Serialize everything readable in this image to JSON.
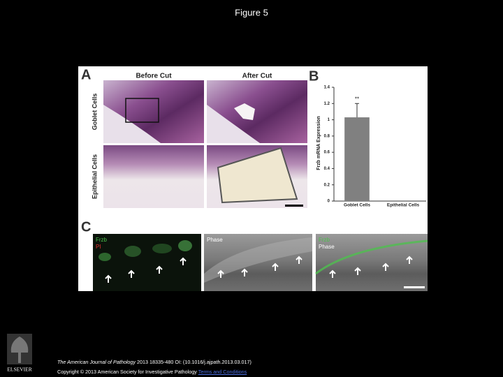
{
  "title": "Figure 5",
  "figure": {
    "panel_a": {
      "label": "A",
      "columns": [
        "Before Cut",
        "After Cut"
      ],
      "rows": [
        "Goblet Cells",
        "Epithelial Cells"
      ]
    },
    "panel_b": {
      "label": "B"
    },
    "panel_c": {
      "label": "C",
      "images": [
        [
          "Frzb",
          "PI"
        ],
        [
          "Phase"
        ],
        [
          "Frzb",
          "Phase"
        ]
      ]
    }
  },
  "chart_data": {
    "type": "bar",
    "y_label": "Frzb mRNA Expression",
    "categories": [
      "Goblet Cells",
      "Epithelial Cells"
    ],
    "values": [
      1.03,
      0
    ],
    "errors": [
      0.17,
      null
    ],
    "annotation": "**",
    "color": "#808080",
    "ylim": [
      0,
      1.4
    ],
    "yticks": [
      0,
      0.2,
      0.4,
      0.6,
      0.8,
      1,
      1.2,
      1.4
    ]
  },
  "footer": {
    "journal": "The American Journal of Pathology",
    "citation": "2013 18335-480 OI: (10.1016/j.ajpath.2013.03.017)",
    "copyright": "Copyright © 2013 American Society for Investigative Pathology",
    "link": "Terms and Conditions",
    "logo": "ELSEVIER"
  }
}
